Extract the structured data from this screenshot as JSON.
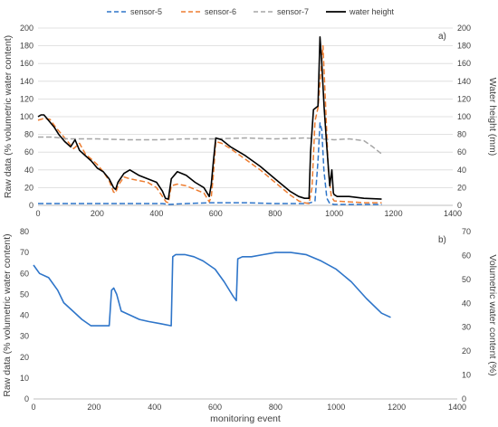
{
  "chart_data": [
    {
      "type": "line",
      "panel_label": "a)",
      "xlabel": "",
      "ylabel": "Raw data (% volumetric water content)",
      "y2label": "Water height (mm)",
      "xlim": [
        0,
        1400
      ],
      "ylim": [
        0,
        200
      ],
      "y2lim": [
        0,
        200
      ],
      "xticks": [
        0,
        200,
        400,
        600,
        800,
        1000,
        1200,
        1400
      ],
      "yticks": [
        0,
        20,
        40,
        60,
        80,
        100,
        120,
        140,
        160,
        180,
        200
      ],
      "y2ticks": [
        0,
        20,
        40,
        60,
        80,
        100,
        120,
        140,
        160,
        180,
        200
      ],
      "grid": "horizontal",
      "legend_position": "top",
      "series": [
        {
          "name": "sensor-5",
          "color": "#2e75c9",
          "style": "dashed",
          "x": [
            0,
            100,
            200,
            300,
            420,
            440,
            500,
            580,
            600,
            700,
            800,
            900,
            920,
            935,
            945,
            952,
            958,
            965,
            975,
            985,
            1000,
            1100,
            1160
          ],
          "y": [
            2,
            2,
            2,
            2,
            2,
            1,
            2,
            3,
            3,
            3,
            2,
            2,
            3,
            5,
            50,
            93,
            85,
            40,
            8,
            2,
            1,
            1,
            1
          ]
        },
        {
          "name": "sensor-6",
          "color": "#ed7d31",
          "style": "dashed",
          "x": [
            0,
            20,
            40,
            60,
            80,
            100,
            120,
            140,
            160,
            180,
            200,
            220,
            240,
            255,
            262,
            270,
            290,
            310,
            340,
            370,
            400,
            420,
            432,
            440,
            450,
            470,
            500,
            530,
            560,
            578,
            585,
            592,
            600,
            620,
            650,
            700,
            750,
            800,
            850,
            880,
            900,
            915,
            925,
            935,
            945,
            955,
            962,
            970,
            980,
            990,
            1000,
            1050,
            1100,
            1160
          ],
          "y": [
            96,
            98,
            97,
            88,
            80,
            72,
            64,
            70,
            58,
            52,
            46,
            38,
            28,
            15,
            14,
            22,
            32,
            30,
            28,
            26,
            20,
            10,
            4,
            3,
            22,
            24,
            22,
            18,
            14,
            4,
            10,
            35,
            72,
            70,
            64,
            52,
            40,
            26,
            12,
            5,
            3,
            2,
            20,
            95,
            110,
            150,
            180,
            120,
            40,
            10,
            5,
            4,
            3,
            3
          ]
        },
        {
          "name": "sensor-7",
          "color": "#a6a6a6",
          "style": "dashed",
          "x": [
            0,
            50,
            100,
            200,
            300,
            400,
            500,
            600,
            700,
            800,
            900,
            950,
            1000,
            1050,
            1100,
            1130,
            1160
          ],
          "y": [
            77,
            77,
            75,
            75,
            74,
            74,
            75,
            75,
            76,
            75,
            76,
            75,
            74,
            75,
            73,
            66,
            58
          ]
        },
        {
          "name": "water height",
          "color": "#000000",
          "style": "solid",
          "x": [
            0,
            10,
            20,
            40,
            55,
            70,
            90,
            110,
            125,
            140,
            160,
            180,
            200,
            220,
            240,
            255,
            262,
            270,
            290,
            310,
            340,
            370,
            400,
            420,
            430,
            440,
            450,
            470,
            500,
            530,
            560,
            578,
            585,
            592,
            600,
            620,
            650,
            700,
            750,
            800,
            850,
            880,
            900,
            915,
            920,
            930,
            945,
            952,
            958,
            966,
            975,
            985,
            992,
            997,
            1000,
            1010,
            1050,
            1100,
            1160
          ],
          "y": [
            100,
            102,
            102,
            94,
            88,
            80,
            72,
            66,
            74,
            62,
            56,
            50,
            42,
            38,
            30,
            20,
            18,
            26,
            36,
            40,
            34,
            30,
            26,
            16,
            8,
            7,
            30,
            38,
            34,
            26,
            20,
            10,
            24,
            50,
            76,
            74,
            66,
            56,
            44,
            30,
            16,
            10,
            8,
            8,
            60,
            108,
            112,
            190,
            160,
            110,
            65,
            22,
            40,
            14,
            12,
            10,
            10,
            8,
            7
          ]
        }
      ]
    },
    {
      "type": "line",
      "panel_label": "b)",
      "xlabel": "monitoring event",
      "ylabel": "Raw data (% volumetric water content)",
      "y2label": "Volumetric water content (%)",
      "xlim": [
        0,
        1400
      ],
      "ylim": [
        0,
        80
      ],
      "y2lim": [
        0,
        70
      ],
      "xticks": [
        0,
        200,
        400,
        600,
        800,
        1000,
        1200,
        1400
      ],
      "yticks": [
        0,
        10,
        20,
        30,
        40,
        50,
        60,
        70,
        80
      ],
      "y2ticks": [
        0,
        10,
        20,
        30,
        40,
        50,
        60,
        70
      ],
      "grid": "none",
      "series": [
        {
          "color": "#2e75c9",
          "style": "solid",
          "x": [
            0,
            20,
            50,
            80,
            100,
            130,
            160,
            190,
            210,
            230,
            250,
            258,
            265,
            275,
            290,
            320,
            350,
            380,
            420,
            455,
            460,
            470,
            500,
            530,
            560,
            600,
            630,
            660,
            670,
            675,
            690,
            720,
            760,
            800,
            850,
            900,
            950,
            1000,
            1050,
            1100,
            1150,
            1180
          ],
          "y": [
            64,
            60,
            58,
            52,
            46,
            42,
            38,
            35,
            35,
            35,
            35,
            52,
            53,
            50,
            42,
            40,
            38,
            37,
            36,
            35,
            68,
            69,
            69,
            68,
            66,
            62,
            56,
            49,
            47,
            67,
            68,
            68,
            69,
            70,
            70,
            69,
            66,
            62,
            56,
            48,
            41,
            39
          ]
        }
      ]
    }
  ]
}
